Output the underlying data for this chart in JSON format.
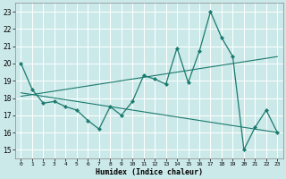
{
  "xlabel": "Humidex (Indice chaleur)",
  "xlim": [
    -0.5,
    23.5
  ],
  "ylim": [
    14.5,
    23.5
  ],
  "yticks": [
    15,
    16,
    17,
    18,
    19,
    20,
    21,
    22,
    23
  ],
  "xticks": [
    0,
    1,
    2,
    3,
    4,
    5,
    6,
    7,
    8,
    9,
    10,
    11,
    12,
    13,
    14,
    15,
    16,
    17,
    18,
    19,
    20,
    21,
    22,
    23
  ],
  "bg_color": "#cce9e9",
  "grid_color": "#b8d8d8",
  "line_color": "#1a7a6e",
  "main_x": [
    0,
    1,
    2,
    3,
    4,
    5,
    6,
    7,
    8,
    9,
    10,
    11,
    12,
    13,
    14,
    15,
    16,
    17,
    18,
    19,
    20,
    21,
    22,
    23
  ],
  "main_y": [
    20.0,
    18.5,
    17.7,
    17.8,
    17.5,
    17.3,
    16.7,
    16.2,
    17.5,
    17.0,
    17.8,
    19.3,
    19.1,
    18.8,
    20.9,
    18.9,
    20.7,
    23.0,
    21.5,
    20.4,
    15.0,
    16.3,
    17.3,
    16.0
  ],
  "trend1_x": [
    0,
    23
  ],
  "trend1_y": [
    18.3,
    16.0
  ],
  "trend2_x": [
    0,
    23
  ],
  "trend2_y": [
    18.1,
    20.4
  ]
}
